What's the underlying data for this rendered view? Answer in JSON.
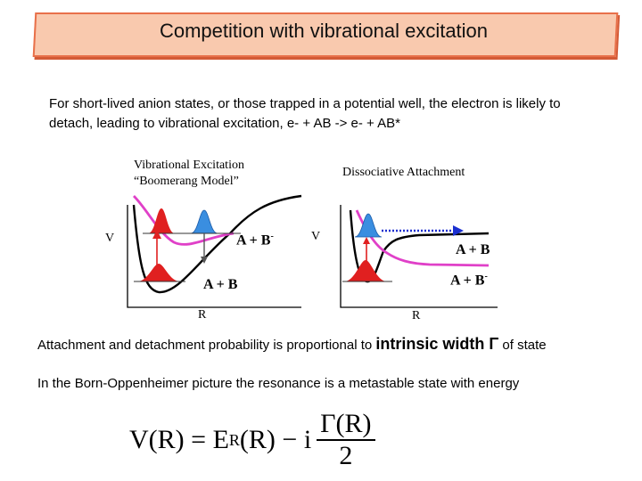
{
  "title": "Competition with vibrational excitation",
  "intro": "For short-lived anion states, or those trapped in a potential well, the electron is likely to detach, leading to vibrational excitation, e- + AB -> e- + AB*",
  "left_diagram": {
    "heading_line1": "Vibrational Excitation",
    "heading_line2": "“Boomerang Model”",
    "v_label": "V",
    "r_label": "R",
    "upper_label": "A + B",
    "upper_sup": "-",
    "lower_label": "A + B"
  },
  "right_diagram": {
    "heading": "Dissociative Attachment",
    "v_label": "V",
    "r_label": "R",
    "upper_label": "A + B",
    "lower_label": "A + B",
    "lower_sup": "-"
  },
  "attachment_text_prefix": "Attachment and detachment probability is proportional to ",
  "attachment_text_emph": "intrinsic width Γ",
  "attachment_text_suffix": " of state",
  "born_text": "In the Born-Oppenheimer picture the resonance is a metastable state with energy",
  "equation": {
    "lhs": "V(R) = E",
    "sub": "R",
    "mid": "(R) − i",
    "numerator": "Γ(R)",
    "denominator": "2"
  },
  "colors": {
    "title_fill": "#f9c9ae",
    "title_border": "#e8704a",
    "neutral_curve": "#000000",
    "anion_curve": "#e040c8",
    "blue_packet": "#3a8ee0",
    "red_packet": "#e02020",
    "dotted_arrow": "#1a2fd0"
  }
}
